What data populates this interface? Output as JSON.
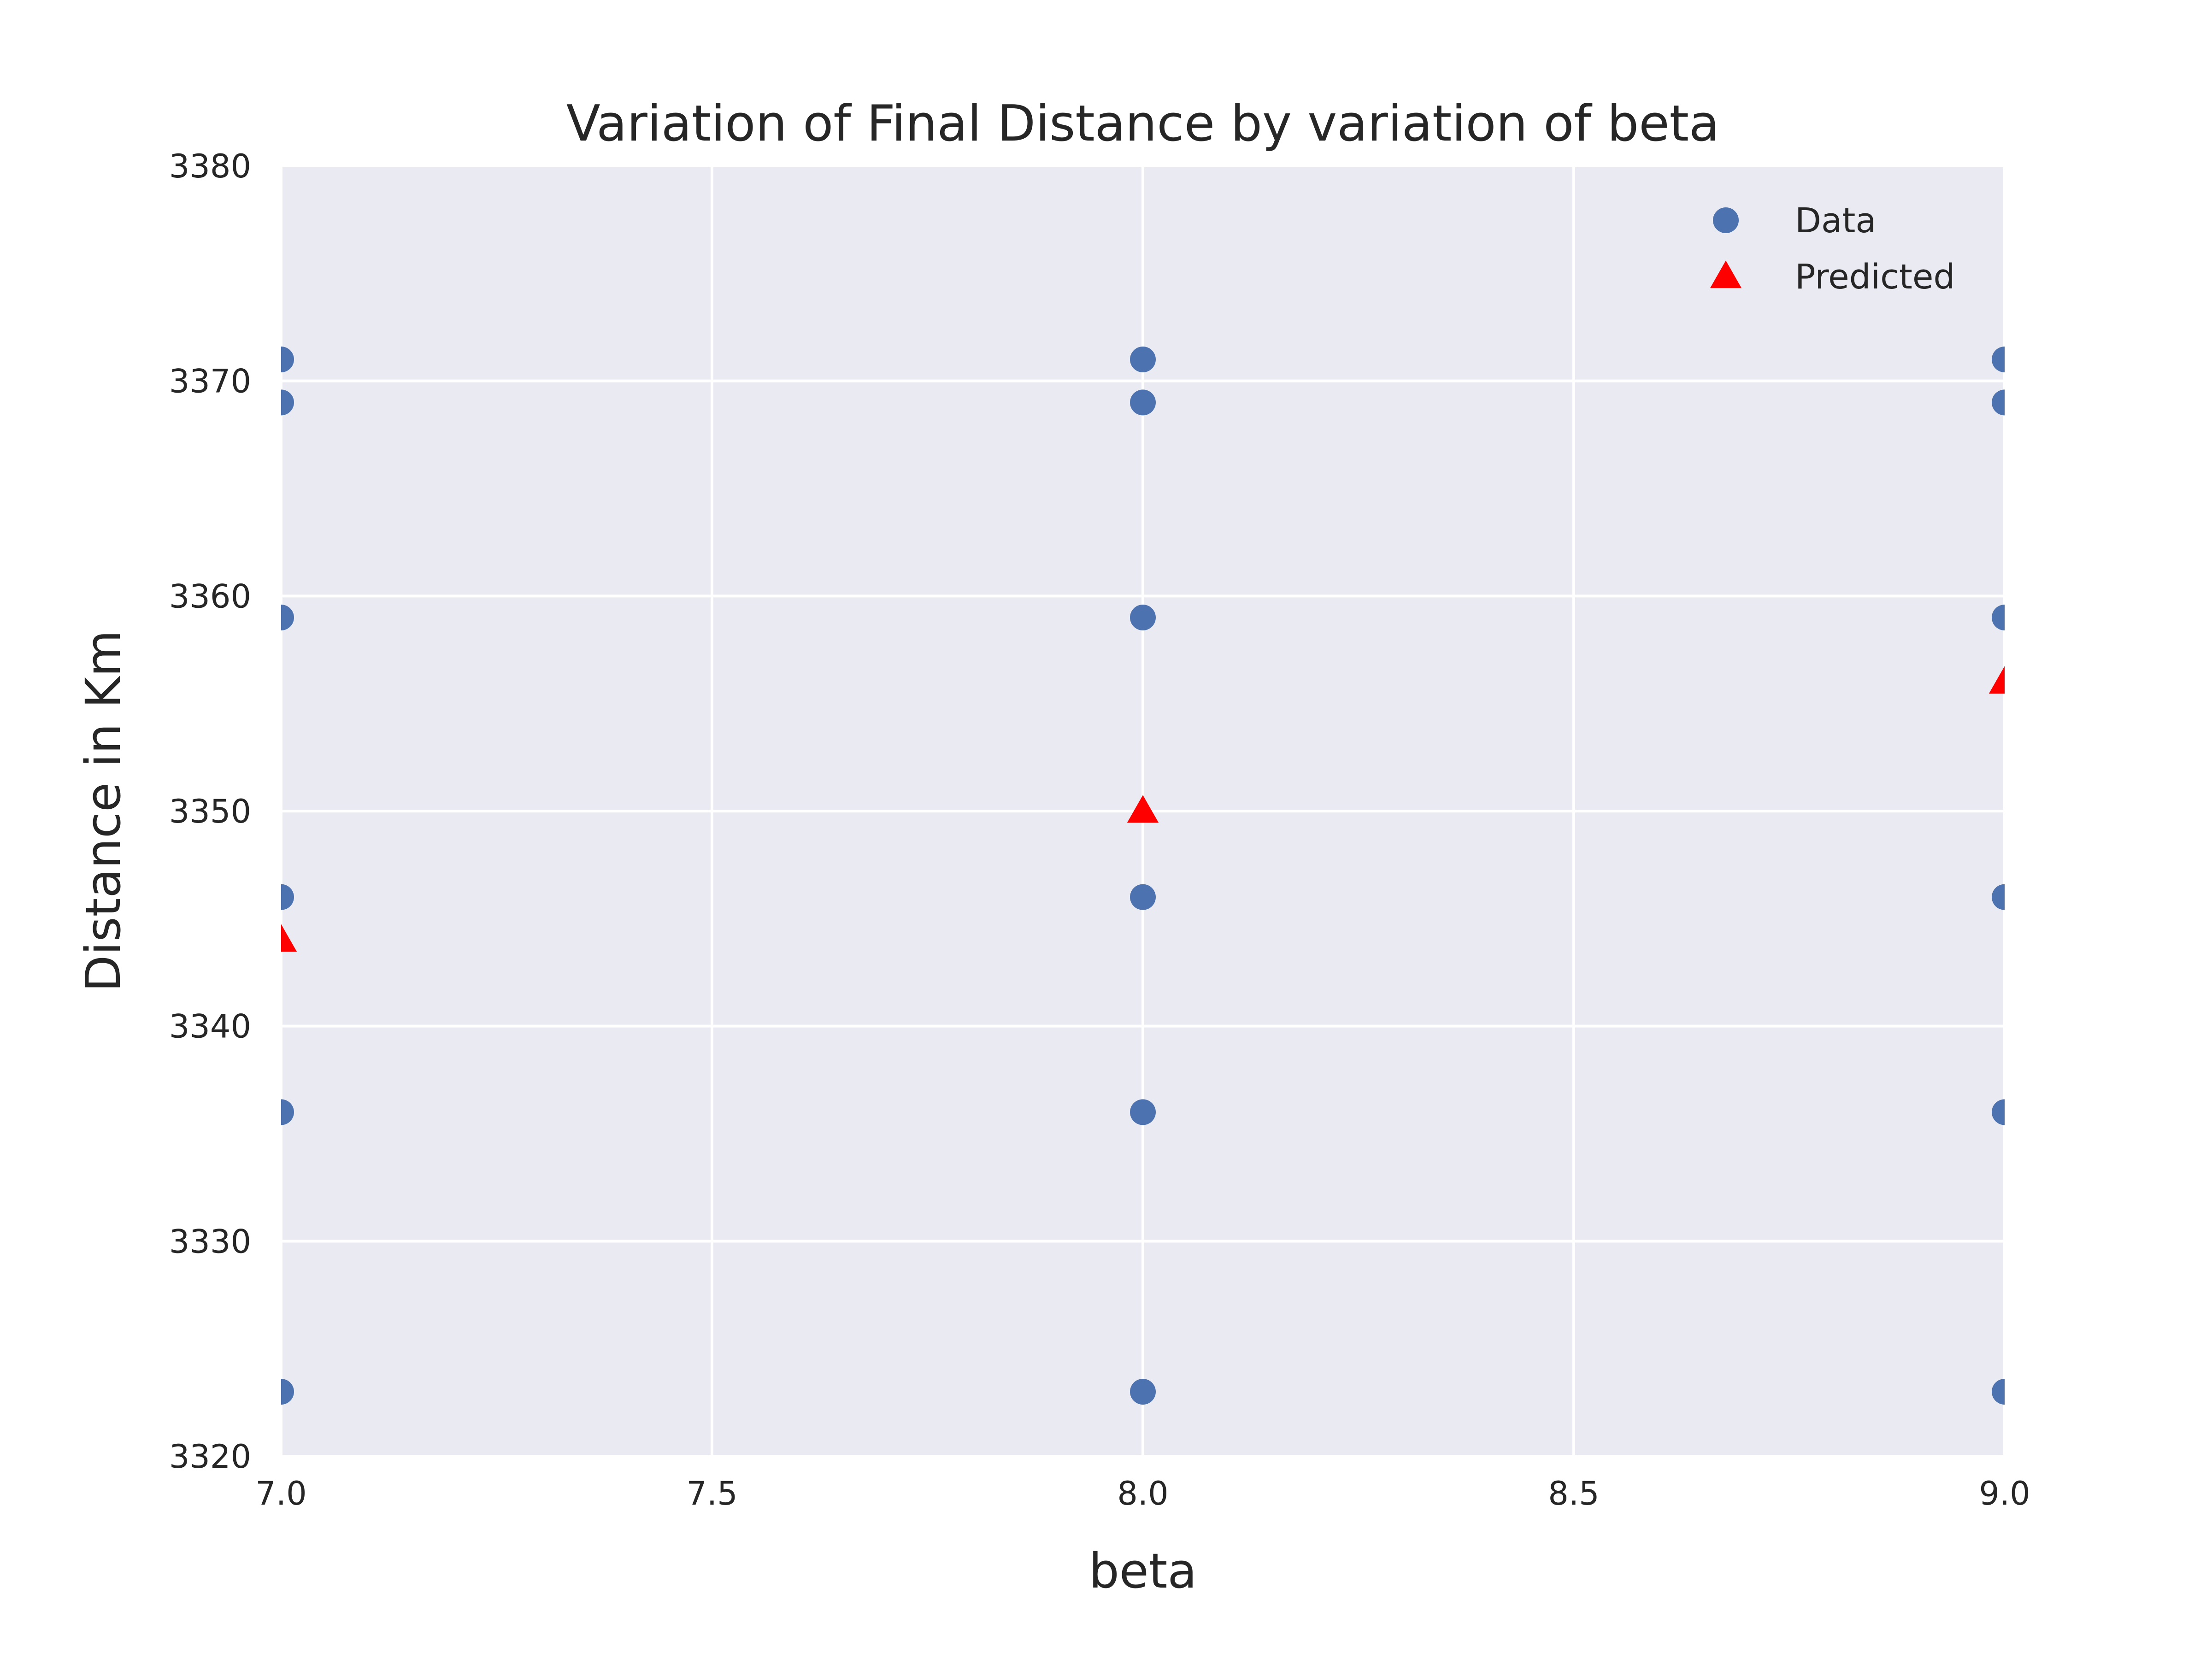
{
  "chart_data": {
    "type": "scatter",
    "title": "Variation of Final Distance by variation of beta",
    "xlabel": "beta",
    "ylabel": "Distance in Km",
    "xlim": [
      7.0,
      9.0
    ],
    "ylim": [
      3320,
      3380
    ],
    "xticks": [
      "7.0",
      "7.5",
      "8.0",
      "8.5",
      "9.0"
    ],
    "yticks": [
      "3320",
      "3330",
      "3340",
      "3350",
      "3360",
      "3370",
      "3380"
    ],
    "grid": true,
    "legend_position": "top-right",
    "series": [
      {
        "name": "Data",
        "marker": "circle",
        "color": "#4c72b0",
        "points": [
          [
            7.0,
            3371
          ],
          [
            7.0,
            3369
          ],
          [
            7.0,
            3359
          ],
          [
            7.0,
            3346
          ],
          [
            7.0,
            3336
          ],
          [
            7.0,
            3323
          ],
          [
            8.0,
            3371
          ],
          [
            8.0,
            3369
          ],
          [
            8.0,
            3359
          ],
          [
            8.0,
            3346
          ],
          [
            8.0,
            3336
          ],
          [
            8.0,
            3323
          ],
          [
            9.0,
            3371
          ],
          [
            9.0,
            3369
          ],
          [
            9.0,
            3359
          ],
          [
            9.0,
            3346
          ],
          [
            9.0,
            3336
          ],
          [
            9.0,
            3323
          ]
        ]
      },
      {
        "name": "Predicted",
        "marker": "triangle",
        "color": "#ff0000",
        "points": [
          [
            7.0,
            3344
          ],
          [
            8.0,
            3350
          ],
          [
            9.0,
            3356
          ]
        ]
      }
    ],
    "colors": {
      "plot_background": "#eaeaf2",
      "grid": "#ffffff",
      "text": "#262626"
    }
  }
}
